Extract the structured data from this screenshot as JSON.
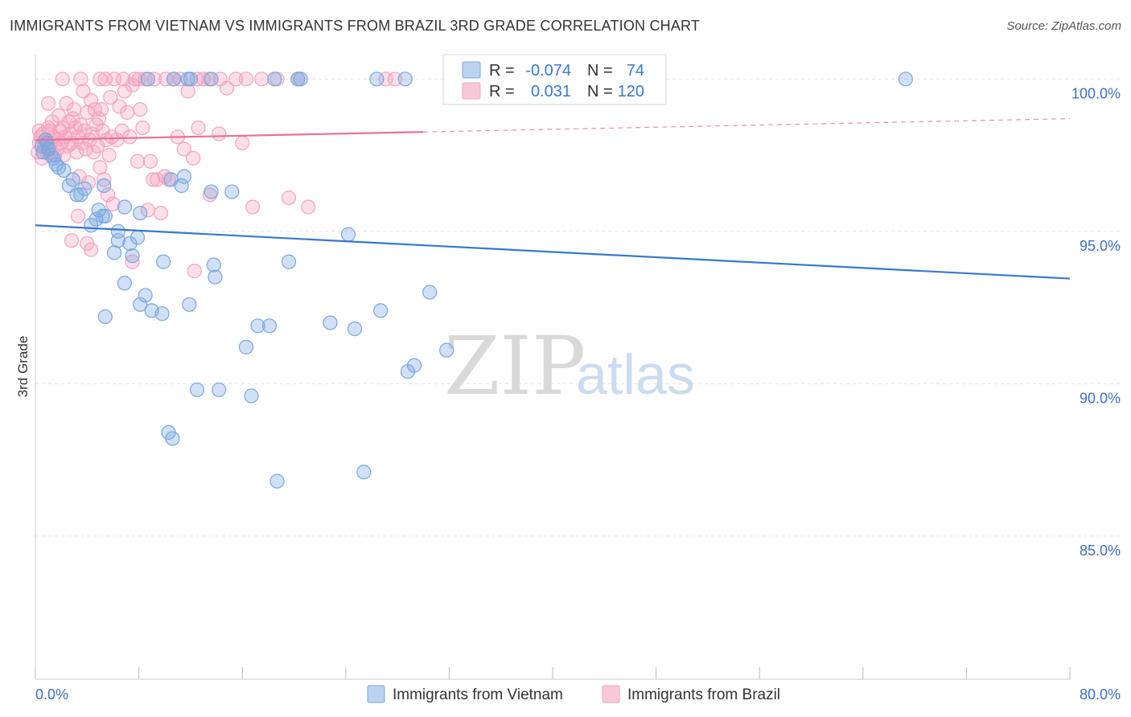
{
  "title": "IMMIGRANTS FROM VIETNAM VS IMMIGRANTS FROM BRAZIL 3RD GRADE CORRELATION CHART",
  "source": "Source: ZipAtlas.com",
  "watermark": {
    "zip": "ZIP",
    "atlas": "atlas"
  },
  "colors": {
    "vietnam": "#7aa6e0",
    "vietnam_line": "#3878d0",
    "brazil": "#f4a3bf",
    "brazil_line": "#e8709a",
    "axis_text": "#3f6fc4"
  },
  "legend": {
    "r_label": "R =",
    "n_label": "N =",
    "vietnam_r": "-0.074",
    "vietnam_n": "74",
    "brazil_r": "0.031",
    "brazil_n": "120"
  },
  "chart_data": {
    "type": "scatter",
    "ylabel": "3rd Grade",
    "xlim": [
      0,
      80
    ],
    "ylim": [
      80.3,
      100.8
    ],
    "x_tick_labels": [
      "0.0%",
      "80.0%"
    ],
    "y_ticks": [
      85,
      90,
      95,
      100
    ],
    "y_tick_labels": [
      "85.0%",
      "90.0%",
      "95.0%",
      "100.0%"
    ],
    "grid": true,
    "series": [
      {
        "name": "Immigrants from Vietnam",
        "r": -0.074,
        "n": 74,
        "trend": {
          "x": [
            0,
            80
          ],
          "y": [
            95.2,
            93.45
          ],
          "dashed_from": null
        },
        "points": [
          [
            0.5,
            97.8
          ],
          [
            0.6,
            97.6
          ],
          [
            0.8,
            98.0
          ],
          [
            0.9,
            97.9
          ],
          [
            1.0,
            97.7
          ],
          [
            1.2,
            97.5
          ],
          [
            1.4,
            97.4
          ],
          [
            1.6,
            97.2
          ],
          [
            1.8,
            97.1
          ],
          [
            2.2,
            97.0
          ],
          [
            2.6,
            96.5
          ],
          [
            2.9,
            96.7
          ],
          [
            3.2,
            96.2
          ],
          [
            3.5,
            96.2
          ],
          [
            3.8,
            96.4
          ],
          [
            4.3,
            95.2
          ],
          [
            4.7,
            95.4
          ],
          [
            4.9,
            95.7
          ],
          [
            5.2,
            95.5
          ],
          [
            5.4,
            95.5
          ],
          [
            5.3,
            96.5
          ],
          [
            6.9,
            95.8
          ],
          [
            8.1,
            95.6
          ],
          [
            6.4,
            94.7
          ],
          [
            6.4,
            95.0
          ],
          [
            7.3,
            94.6
          ],
          [
            7.9,
            94.8
          ],
          [
            6.1,
            94.3
          ],
          [
            7.5,
            94.2
          ],
          [
            9.9,
            94.0
          ],
          [
            11.3,
            96.5
          ],
          [
            11.5,
            96.8
          ],
          [
            10.5,
            96.7
          ],
          [
            13.6,
            96.3
          ],
          [
            15.2,
            96.3
          ],
          [
            13.8,
            93.9
          ],
          [
            13.9,
            93.5
          ],
          [
            19.6,
            94.0
          ],
          [
            24.2,
            94.9
          ],
          [
            6.9,
            93.3
          ],
          [
            8.5,
            92.9
          ],
          [
            8.1,
            92.6
          ],
          [
            11.9,
            92.6
          ],
          [
            9.0,
            92.4
          ],
          [
            9.8,
            92.3
          ],
          [
            5.4,
            92.2
          ],
          [
            17.2,
            91.9
          ],
          [
            18.1,
            91.9
          ],
          [
            22.8,
            92.0
          ],
          [
            24.7,
            91.8
          ],
          [
            26.7,
            92.4
          ],
          [
            30.5,
            93.0
          ],
          [
            16.3,
            91.2
          ],
          [
            29.3,
            90.6
          ],
          [
            28.8,
            90.4
          ],
          [
            31.8,
            91.1
          ],
          [
            12.5,
            89.8
          ],
          [
            14.2,
            89.8
          ],
          [
            16.7,
            89.6
          ],
          [
            10.3,
            88.4
          ],
          [
            10.6,
            88.2
          ],
          [
            18.7,
            86.8
          ],
          [
            25.4,
            87.1
          ],
          [
            8.7,
            100.0
          ],
          [
            10.7,
            100.0
          ],
          [
            11.8,
            100.0
          ],
          [
            12.0,
            100.0
          ],
          [
            13.6,
            100.0
          ],
          [
            18.5,
            100.0
          ],
          [
            20.3,
            100.0
          ],
          [
            20.5,
            100.0
          ],
          [
            26.4,
            100.0
          ],
          [
            28.6,
            100.0
          ],
          [
            67.3,
            100.0
          ]
        ]
      },
      {
        "name": "Immigrants from Brazil",
        "r": 0.031,
        "n": 120,
        "trend": {
          "x": [
            0,
            80
          ],
          "y": [
            98.0,
            98.7
          ],
          "dashed_from": 30
        },
        "points": [
          [
            0.2,
            97.6
          ],
          [
            0.3,
            97.9
          ],
          [
            0.3,
            98.3
          ],
          [
            0.4,
            98.1
          ],
          [
            0.5,
            97.4
          ],
          [
            0.6,
            98.2
          ],
          [
            0.7,
            97.8
          ],
          [
            0.8,
            98.0
          ],
          [
            0.9,
            97.6
          ],
          [
            1.0,
            98.4
          ],
          [
            1.1,
            97.7
          ],
          [
            1.1,
            98.3
          ],
          [
            1.2,
            97.9
          ],
          [
            1.3,
            98.6
          ],
          [
            1.4,
            98.1
          ],
          [
            1.5,
            97.5
          ],
          [
            1.6,
            98.0
          ],
          [
            1.7,
            97.7
          ],
          [
            1.8,
            98.8
          ],
          [
            1.9,
            98.3
          ],
          [
            2.0,
            97.9
          ],
          [
            2.1,
            98.4
          ],
          [
            2.2,
            97.5
          ],
          [
            2.3,
            98.1
          ],
          [
            2.4,
            99.2
          ],
          [
            2.5,
            97.8
          ],
          [
            2.6,
            98.6
          ],
          [
            2.7,
            98.2
          ],
          [
            2.8,
            97.9
          ],
          [
            2.9,
            98.7
          ],
          [
            3.0,
            99.0
          ],
          [
            3.1,
            98.4
          ],
          [
            3.2,
            97.6
          ],
          [
            3.3,
            98.1
          ],
          [
            3.4,
            96.8
          ],
          [
            3.5,
            98.5
          ],
          [
            3.6,
            97.9
          ],
          [
            3.7,
            99.6
          ],
          [
            3.8,
            98.3
          ],
          [
            3.9,
            97.7
          ],
          [
            4.0,
            98.9
          ],
          [
            4.1,
            96.6
          ],
          [
            4.2,
            98.0
          ],
          [
            4.3,
            99.3
          ],
          [
            4.4,
            98.2
          ],
          [
            4.5,
            97.6
          ],
          [
            4.6,
            99.0
          ],
          [
            4.7,
            98.5
          ],
          [
            4.8,
            97.8
          ],
          [
            4.9,
            98.7
          ],
          [
            5.0,
            97.1
          ],
          [
            5.1,
            99.0
          ],
          [
            5.2,
            98.3
          ],
          [
            5.3,
            96.7
          ],
          [
            5.4,
            100.0
          ],
          [
            5.5,
            98.0
          ],
          [
            5.6,
            96.2
          ],
          [
            5.7,
            97.5
          ],
          [
            5.8,
            99.4
          ],
          [
            5.9,
            98.1
          ],
          [
            6.0,
            95.9
          ],
          [
            6.1,
            100.0
          ],
          [
            6.3,
            98.0
          ],
          [
            6.5,
            99.1
          ],
          [
            6.7,
            98.3
          ],
          [
            6.9,
            99.6
          ],
          [
            7.1,
            98.9
          ],
          [
            7.3,
            98.1
          ],
          [
            7.5,
            99.8
          ],
          [
            7.7,
            100.0
          ],
          [
            7.9,
            97.3
          ],
          [
            8.1,
            99.0
          ],
          [
            8.3,
            98.4
          ],
          [
            8.5,
            100.0
          ],
          [
            8.7,
            95.7
          ],
          [
            8.9,
            97.3
          ],
          [
            9.1,
            96.7
          ],
          [
            9.4,
            96.7
          ],
          [
            9.7,
            95.6
          ],
          [
            10.0,
            96.8
          ],
          [
            10.3,
            96.7
          ],
          [
            10.7,
            100.0
          ],
          [
            11.0,
            98.1
          ],
          [
            11.5,
            97.7
          ],
          [
            11.8,
            99.6
          ],
          [
            12.2,
            97.4
          ],
          [
            12.6,
            98.4
          ],
          [
            13.0,
            100.0
          ],
          [
            13.5,
            96.2
          ],
          [
            14.2,
            98.2
          ],
          [
            14.8,
            99.7
          ],
          [
            15.5,
            100.0
          ],
          [
            16.0,
            97.9
          ],
          [
            16.8,
            95.8
          ],
          [
            17.5,
            100.0
          ],
          [
            19.6,
            96.1
          ],
          [
            21.1,
            95.8
          ],
          [
            2.8,
            94.7
          ],
          [
            3.3,
            95.5
          ],
          [
            4.0,
            94.6
          ],
          [
            4.3,
            94.4
          ],
          [
            7.5,
            94.0
          ],
          [
            12.3,
            93.7
          ],
          [
            1.0,
            99.2
          ],
          [
            2.1,
            100.0
          ],
          [
            3.5,
            100.0
          ],
          [
            5.0,
            100.0
          ],
          [
            6.8,
            100.0
          ],
          [
            8.0,
            100.0
          ],
          [
            9.2,
            100.0
          ],
          [
            10.1,
            100.0
          ],
          [
            11.2,
            100.0
          ],
          [
            12.5,
            100.0
          ],
          [
            13.4,
            100.0
          ],
          [
            14.3,
            100.0
          ],
          [
            16.3,
            100.0
          ],
          [
            18.7,
            100.0
          ],
          [
            20.3,
            100.0
          ],
          [
            27.1,
            100.0
          ],
          [
            27.8,
            100.0
          ]
        ]
      }
    ]
  }
}
